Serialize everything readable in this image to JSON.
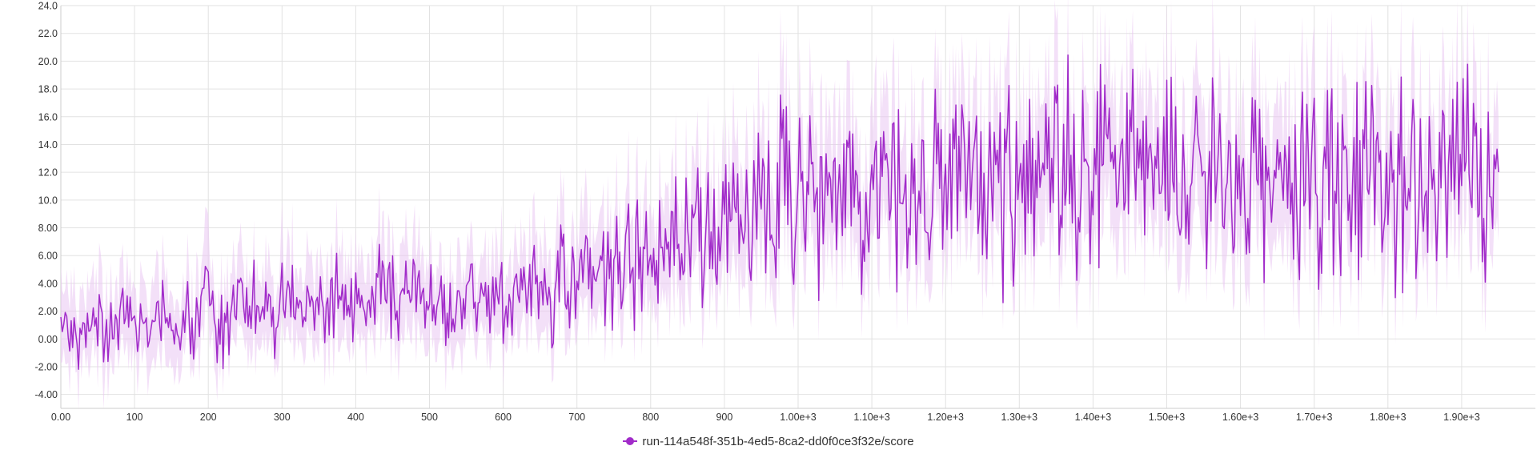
{
  "chart_data": {
    "type": "line",
    "title": "",
    "xlabel": "",
    "ylabel": "",
    "xlim": [
      0,
      2000
    ],
    "ylim": [
      -5,
      24
    ],
    "x_ticks": [
      0,
      100,
      200,
      300,
      400,
      500,
      600,
      700,
      800,
      900,
      1000,
      1100,
      1200,
      1300,
      1400,
      1500,
      1600,
      1700,
      1800,
      1900
    ],
    "x_tick_labels": [
      "0.00",
      "100",
      "200",
      "300",
      "400",
      "500",
      "600",
      "700",
      "800",
      "900",
      "1.00e+3",
      "1.10e+3",
      "1.20e+3",
      "1.30e+3",
      "1.40e+3",
      "1.50e+3",
      "1.60e+3",
      "1.70e+3",
      "1.80e+3",
      "1.90e+3"
    ],
    "y_ticks": [
      -4,
      -2,
      0,
      2,
      4,
      6,
      8,
      10,
      12,
      14,
      16,
      18,
      20,
      22,
      24
    ],
    "y_tick_labels": [
      "-4.00",
      "-2.00",
      "0.00",
      "2.00",
      "4.00",
      "6.00",
      "8.00",
      "10.0",
      "12.0",
      "14.0",
      "16.0",
      "18.0",
      "20.0",
      "22.0",
      "24.0"
    ],
    "grid": true,
    "legend_position": "bottom-center",
    "series": [
      {
        "name": "run-114a548f-351b-4ed5-8ca2-dd0f0ce3f32e/score",
        "color": "#a12bc9",
        "band_color": "#e9c6f3",
        "x_step": 10,
        "values": [
          0.5,
          0.5,
          0.0,
          0.5,
          0.5,
          1.5,
          0.0,
          1.0,
          1.5,
          2.5,
          0.0,
          1.0,
          0.5,
          1.5,
          3.5,
          0.5,
          1.0,
          2.0,
          1.0,
          2.5,
          2.5,
          1.5,
          1.0,
          1.0,
          4.0,
          1.0,
          2.5,
          3.5,
          1.5,
          0.5,
          3.0,
          2.0,
          2.0,
          2.5,
          1.5,
          3.0,
          1.0,
          2.5,
          2.0,
          2.5,
          3.5,
          3.0,
          3.0,
          4.5,
          3.0,
          3.0,
          1.5,
          3.0,
          3.5,
          2.0,
          2.0,
          2.5,
          1.5,
          2.0,
          2.5,
          3.0,
          3.5,
          3.0,
          2.0,
          2.5,
          3.0,
          2.0,
          4.0,
          2.5,
          3.0,
          4.5,
          3.0,
          3.5,
          5.0,
          4.0,
          4.0,
          5.5,
          4.5,
          7.0,
          5.0,
          6.0,
          4.5,
          6.5,
          5.5,
          6.5,
          7.0,
          6.0,
          5.5,
          7.5,
          6.0,
          7.0,
          8.5,
          7.0,
          8.0,
          6.5,
          8.0,
          9.5,
          7.5,
          9.0,
          9.0,
          10.5,
          9.5,
          8.5,
          10.5,
          9.5,
          10.0,
          9.0,
          10.5,
          11.0,
          10.0,
          9.0,
          10.5,
          11.5,
          10.0,
          10.0,
          9.5,
          11.0,
          10.5,
          11.0,
          10.0,
          11.0,
          11.5,
          10.0,
          10.0,
          11.0,
          10.5,
          10.0,
          11.0,
          10.5,
          12.0,
          11.0,
          11.5,
          12.0,
          11.0,
          11.0,
          11.5,
          11.5,
          12.0,
          11.5,
          11.0,
          12.0,
          11.5,
          12.0,
          11.0,
          12.5,
          11.5,
          12.0,
          11.0,
          12.5,
          11.5,
          12.0,
          11.5,
          11.5,
          12.0,
          11.5,
          11.5,
          12.5,
          11.0,
          11.5,
          11.0,
          11.5,
          11.5,
          12.0,
          11.5,
          11.0,
          11.5,
          11.5,
          12.0,
          11.5,
          11.0,
          11.5,
          11.5,
          11.0,
          12.0,
          11.5,
          11.5,
          11.0,
          12.0,
          11.5,
          11.5,
          11.0,
          11.5,
          12.0,
          11.5,
          12.5,
          11.5,
          11.5,
          11.0,
          12.0,
          11.5,
          11.5,
          11.0,
          12.0,
          11.5,
          12.0,
          11.5,
          12.0,
          12.5,
          11.5,
          12.0,
          12.0
        ]
      }
    ]
  }
}
